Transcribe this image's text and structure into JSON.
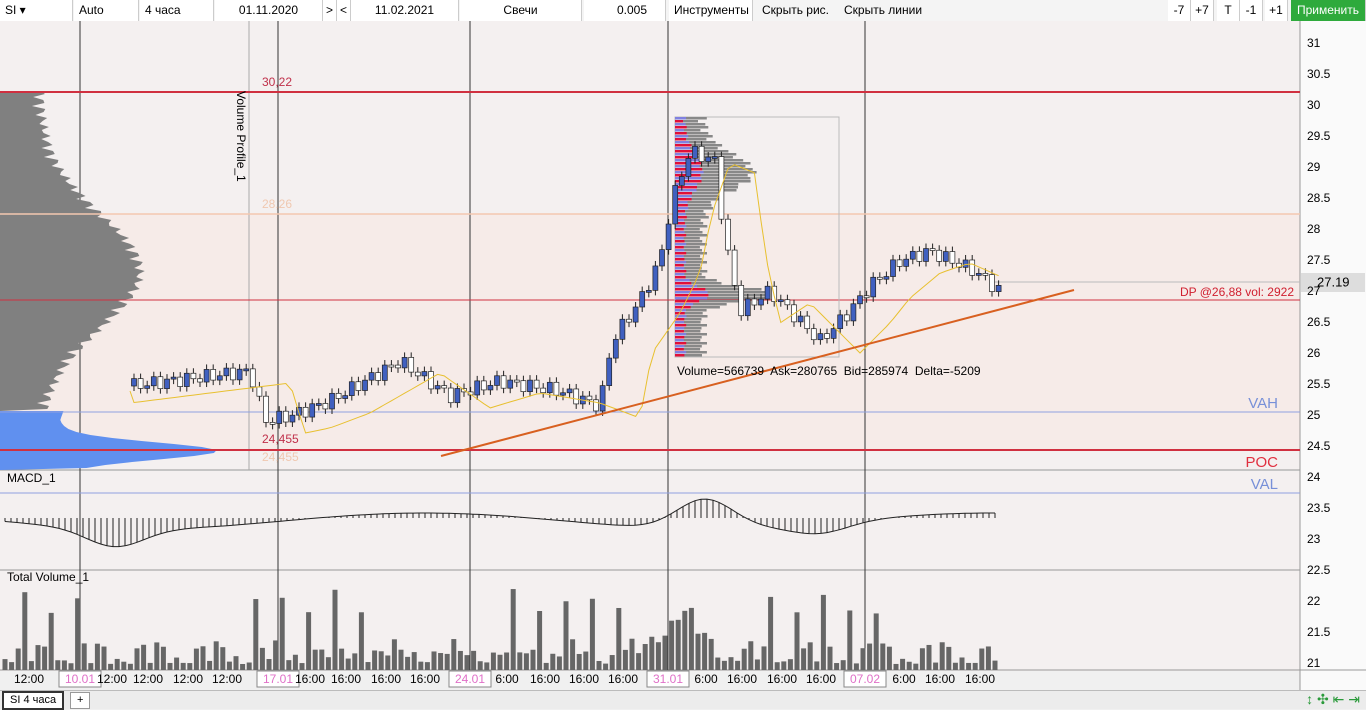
{
  "toolbar": {
    "symbol": "SI",
    "scale": "Auto",
    "timeframe": "4 часа",
    "date_from": "01.11.2020",
    "next": ">",
    "prev": "<",
    "date_to": "11.02.2021",
    "chart_type": "Свечи",
    "step": "0.005",
    "tools": "Инструменты",
    "hide_drawings": "Скрыть рис.",
    "hide_lines": "Скрыть линии",
    "buttons": [
      "-7",
      "+7",
      "T",
      "-1",
      "+1"
    ],
    "apply": "Применить"
  },
  "chart": {
    "volume_profile_label": "Volume Profile_1",
    "level_high": "30,22",
    "level_mid": "28,26",
    "level_low": "24,455",
    "level_low_ghost": "24,455",
    "dp_label": "DP @26,88 vol: 2922",
    "profile_stats": "Volume=566739  Ask=280765  Bid=285974  Delta=-5209",
    "vah": "VAH",
    "poc": "POC",
    "val": "VAL",
    "last_price": "27.19",
    "macd_label": "MACD_1",
    "volume_label": "Total Volume_1",
    "price_axis": [
      "31",
      "30.5",
      "30",
      "29.5",
      "29",
      "28.5",
      "28",
      "27.5",
      "27",
      "26.5",
      "26",
      "25.5",
      "25",
      "24.5",
      "24",
      "23.5",
      "23",
      "22.5",
      "22",
      "21.5",
      "21"
    ],
    "time_labels": [
      "12:00",
      "10.01",
      "12:00",
      "12:00",
      "12:00",
      "12:00",
      "17.01",
      "16:00",
      "16:00",
      "16:00",
      "16:00",
      "24.01",
      "6:00",
      "16:00",
      "16:00",
      "16:00",
      "31.01",
      "6:00",
      "16:00",
      "16:00",
      "16:00",
      "07.02",
      "6:00",
      "16:00",
      "16:00"
    ]
  },
  "tabs": [
    "SI 4 часа",
    "+"
  ]
}
